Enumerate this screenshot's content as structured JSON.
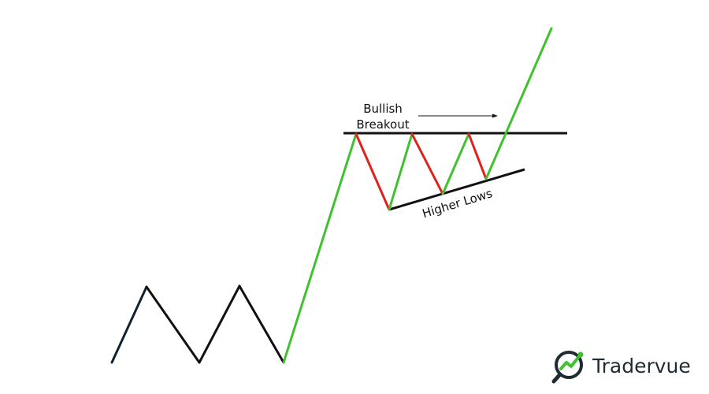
{
  "diagram": {
    "annotations": {
      "breakout_line1": "Bullish",
      "breakout_line2": "Breakout",
      "higher_lows": "Higher Lows"
    },
    "colors": {
      "bullish": "#3fc22e",
      "bearish": "#e0201c",
      "neutral": "#111111",
      "background": "#ffffff"
    }
  },
  "brand": {
    "name": "Tradervue",
    "logo_icon": "search-trend-icon",
    "colors": {
      "dark": "#1f2b33",
      "accent": "#3fc22e"
    }
  }
}
